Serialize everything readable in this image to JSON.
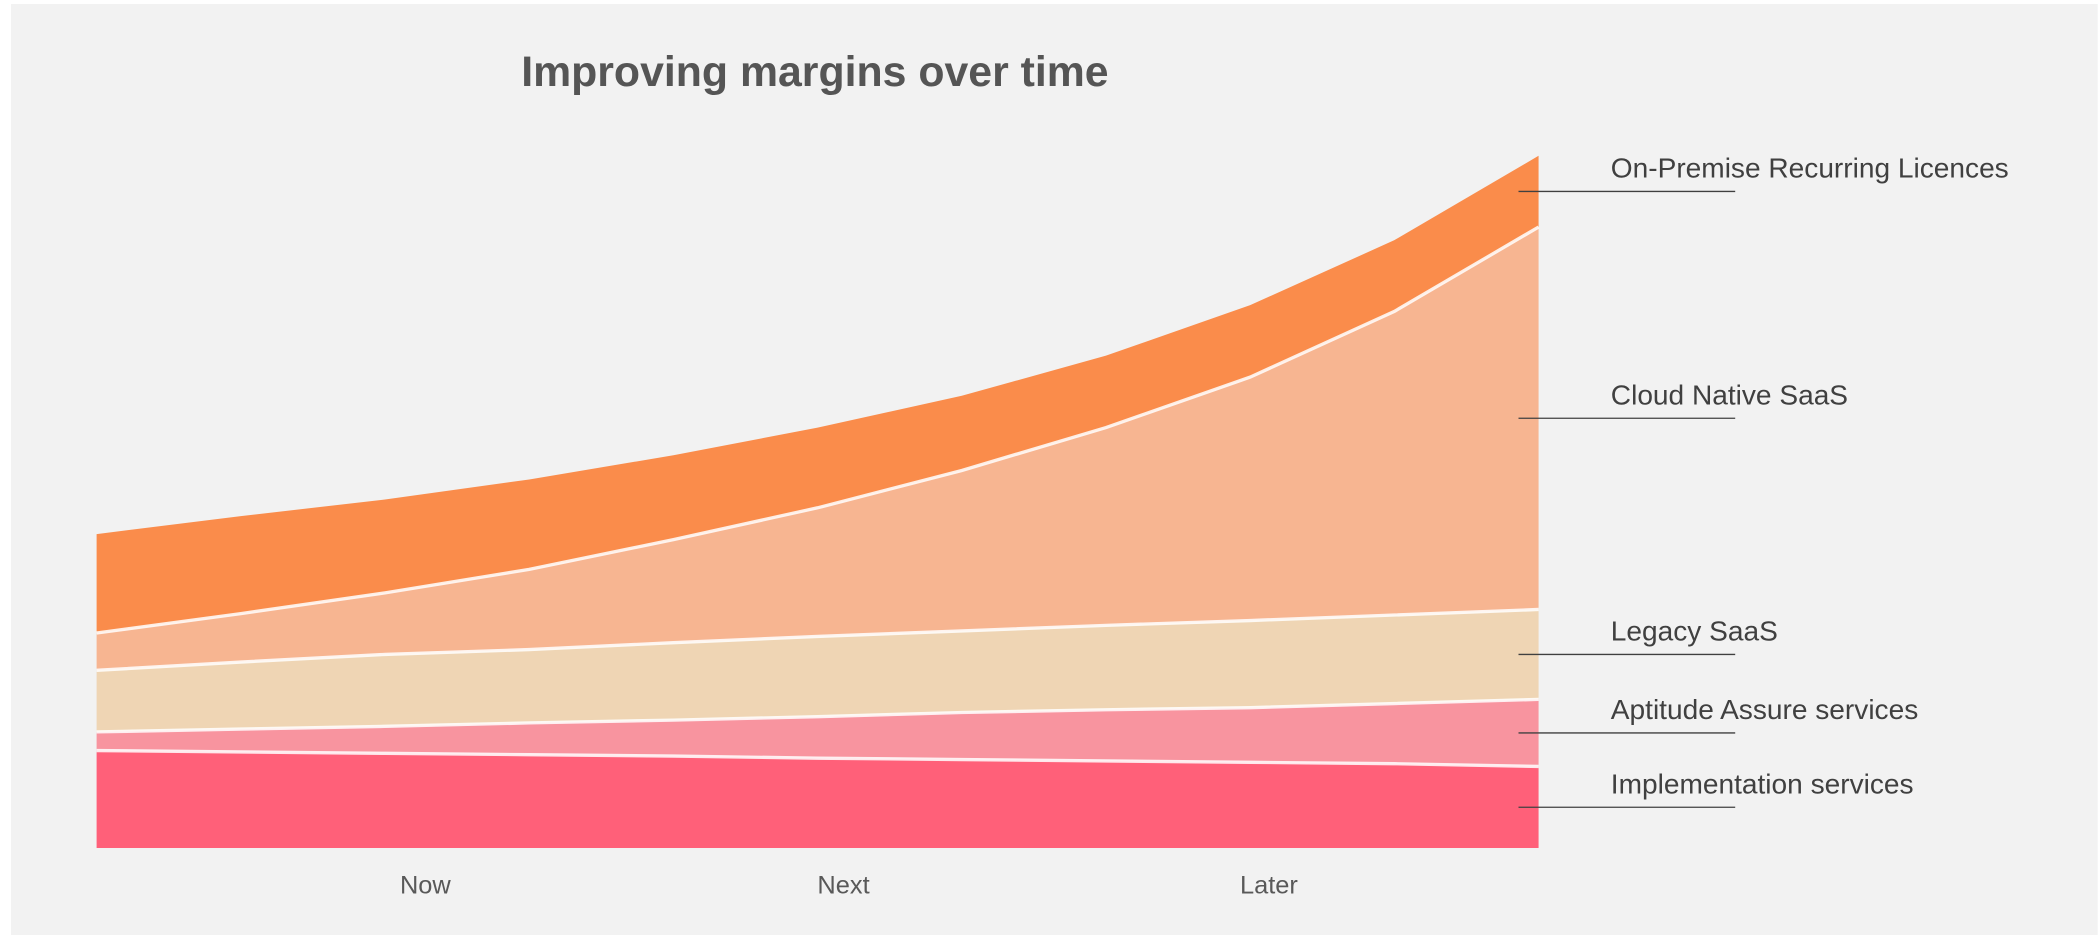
{
  "chart_data": {
    "type": "stacked-area",
    "title": "Improving margins over time",
    "x": [
      0,
      1,
      2,
      3,
      4,
      5,
      6,
      7,
      8,
      9,
      10
    ],
    "xlim": [
      0,
      10
    ],
    "xticks": [
      {
        "value": 2.28,
        "label": "Now"
      },
      {
        "value": 5.18,
        "label": "Next"
      },
      {
        "value": 8.13,
        "label": "Later"
      }
    ],
    "ylim": [
      0,
      100
    ],
    "series": [
      {
        "name": "Implementation services",
        "color": "#ff6079",
        "values": [
          14.1,
          13.9,
          13.7,
          13.5,
          13.3,
          13.0,
          12.8,
          12.6,
          12.4,
          12.2,
          11.8
        ]
      },
      {
        "name": "Aptitude Assure services",
        "color": "#f8949f",
        "values": [
          2.7,
          3.3,
          3.9,
          4.6,
          5.2,
          6.0,
          6.8,
          7.4,
          7.9,
          8.7,
          9.7
        ]
      },
      {
        "name": "Legacy SaaS",
        "color": "#efd5b4",
        "values": [
          8.9,
          9.7,
          10.4,
          10.6,
          11.2,
          11.6,
          11.8,
          12.2,
          12.6,
          12.8,
          13.0
        ]
      },
      {
        "name": "Cloud Native SaaS",
        "color": "#f7b591",
        "values": [
          5.4,
          7.0,
          8.9,
          11.6,
          14.9,
          18.6,
          23.2,
          28.6,
          35.2,
          43.9,
          55.3
        ]
      },
      {
        "name": "On-Premise Recurring Licences",
        "color": "#fa8c4b",
        "values": [
          14.3,
          14.1,
          13.5,
          13.0,
          12.2,
          11.6,
          10.8,
          10.4,
          10.4,
          10.3,
          10.3
        ]
      }
    ]
  }
}
